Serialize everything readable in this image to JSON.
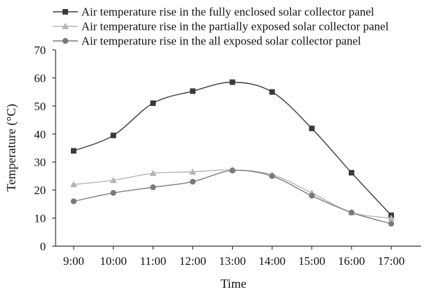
{
  "chart_data": {
    "type": "line",
    "title": "",
    "xlabel": "Time",
    "ylabel": "Temperature (°C)",
    "ylim": [
      0,
      70
    ],
    "yticks": [
      0,
      10,
      20,
      30,
      40,
      50,
      60,
      70
    ],
    "categories": [
      "9:00",
      "10:00",
      "11:00",
      "12:00",
      "13:00",
      "14:00",
      "15:00",
      "16:00",
      "17:00"
    ],
    "grid": false,
    "legend_position": "top",
    "series": [
      {
        "name": "Air temperature rise in the fully enclosed solar collector panel",
        "marker": "square",
        "color": "#3a3a3a",
        "values": [
          34,
          39.5,
          51,
          55.3,
          58.5,
          55,
          42,
          26.2,
          11
        ]
      },
      {
        "name": "Air temperature rise in the partially exposed solar collector panel",
        "marker": "triangle",
        "color": "#b5b5b5",
        "values": [
          22,
          23.5,
          26,
          26.5,
          27.2,
          25.5,
          19,
          12,
          10
        ]
      },
      {
        "name": "Air temperature rise in the all exposed solar collector panel",
        "marker": "circle",
        "color": "#7a7a7a",
        "values": [
          16,
          19,
          21,
          23,
          27,
          25,
          18,
          12,
          8
        ]
      }
    ]
  }
}
